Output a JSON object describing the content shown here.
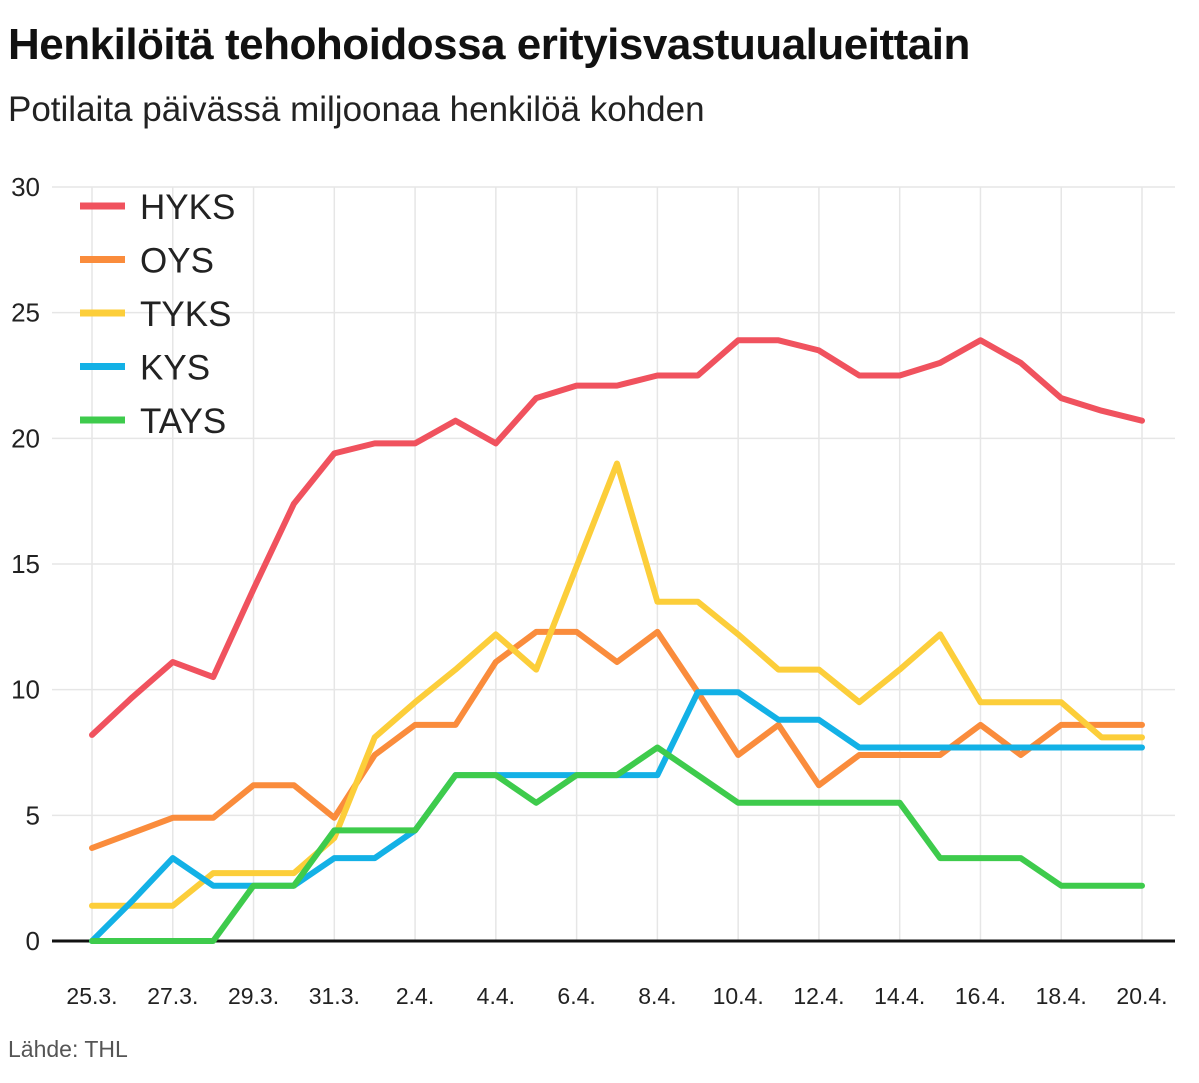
{
  "chart_data": {
    "type": "line",
    "title": "Henkilöitä tehohoidossa erityisvastuualueittain",
    "subtitle": "Potilaita päivässä miljoonaa henkilöä kohden",
    "source": "Lähde: THL",
    "xlabel": "",
    "ylabel": "",
    "ylim": [
      0,
      30
    ],
    "yticks": [
      "0",
      "5",
      "10",
      "15",
      "20",
      "25",
      "30"
    ],
    "grid": true,
    "legend_position": "top-left",
    "x": [
      "25.3.",
      "26.3.",
      "27.3.",
      "28.3.",
      "29.3.",
      "30.3.",
      "31.3.",
      "1.4.",
      "2.4.",
      "3.4.",
      "4.4.",
      "5.4.",
      "6.4.",
      "7.4.",
      "8.4.",
      "9.4.",
      "10.4.",
      "11.4.",
      "12.4.",
      "13.4.",
      "14.4.",
      "15.4.",
      "16.4.",
      "17.4.",
      "18.4.",
      "19.4.",
      "20.4."
    ],
    "xtick_labels": [
      "25.3.",
      "27.3.",
      "29.3.",
      "31.3.",
      "2.4.",
      "4.4.",
      "6.4.",
      "8.4.",
      "10.4.",
      "12.4.",
      "14.4.",
      "16.4.",
      "18.4.",
      "20.4."
    ],
    "series": [
      {
        "name": "HYKS",
        "color": "#f0525e",
        "values": [
          8.2,
          9.7,
          11.1,
          10.5,
          14.0,
          17.4,
          19.4,
          19.8,
          19.8,
          20.7,
          19.8,
          21.6,
          22.1,
          22.1,
          22.5,
          22.5,
          23.9,
          23.9,
          23.5,
          22.5,
          22.5,
          23.0,
          23.9,
          23.0,
          21.6,
          21.1,
          20.7
        ]
      },
      {
        "name": "OYS",
        "color": "#fa8c3c",
        "values": [
          3.7,
          4.3,
          4.9,
          4.9,
          6.2,
          6.2,
          4.9,
          7.4,
          8.6,
          8.6,
          11.1,
          12.3,
          12.3,
          11.1,
          12.3,
          9.9,
          7.4,
          8.6,
          6.2,
          7.4,
          7.4,
          7.4,
          8.6,
          7.4,
          8.6,
          8.6,
          8.6
        ]
      },
      {
        "name": "TYKS",
        "color": "#fcce3a",
        "values": [
          1.4,
          1.4,
          1.4,
          2.7,
          2.7,
          2.7,
          4.1,
          8.1,
          9.5,
          10.8,
          12.2,
          10.8,
          14.9,
          19.0,
          13.5,
          13.5,
          12.2,
          10.8,
          10.8,
          9.5,
          10.8,
          12.2,
          9.5,
          9.5,
          9.5,
          8.1,
          8.1
        ]
      },
      {
        "name": "KYS",
        "color": "#13b1e6",
        "values": [
          0.0,
          1.6,
          3.3,
          2.2,
          2.2,
          2.2,
          3.3,
          3.3,
          4.4,
          6.6,
          6.6,
          6.6,
          6.6,
          6.6,
          6.6,
          9.9,
          9.9,
          8.8,
          8.8,
          7.7,
          7.7,
          7.7,
          7.7,
          7.7,
          7.7,
          7.7,
          7.7
        ]
      },
      {
        "name": "TAYS",
        "color": "#3ecb4c",
        "values": [
          0.0,
          0.0,
          0.0,
          0.0,
          2.2,
          2.2,
          4.4,
          4.4,
          4.4,
          6.6,
          6.6,
          5.5,
          6.6,
          6.6,
          7.7,
          6.6,
          5.5,
          5.5,
          5.5,
          5.5,
          5.5,
          3.3,
          3.3,
          3.3,
          2.2,
          2.2,
          2.2
        ]
      }
    ]
  }
}
